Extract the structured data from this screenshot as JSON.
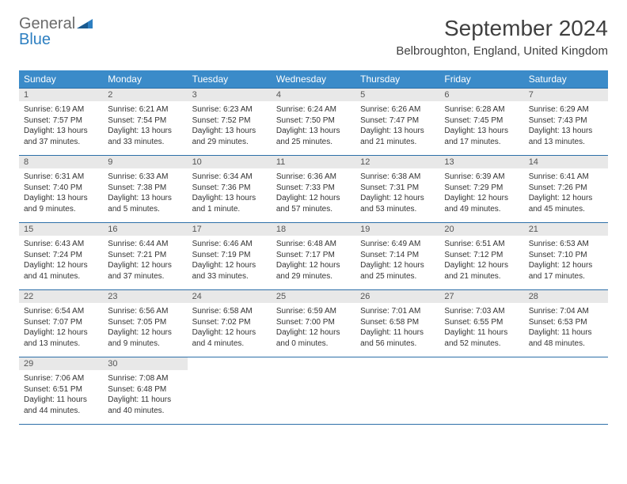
{
  "logo": {
    "text1": "General",
    "text2": "Blue"
  },
  "title": "September 2024",
  "location": "Belbroughton, England, United Kingdom",
  "colors": {
    "header_bg": "#3b8bc9",
    "header_text": "#ffffff",
    "daynum_bg": "#e8e8e8",
    "border": "#2d6fa8",
    "logo_gray": "#6b6b6b",
    "logo_blue": "#2d7fc1"
  },
  "weekdays": [
    "Sunday",
    "Monday",
    "Tuesday",
    "Wednesday",
    "Thursday",
    "Friday",
    "Saturday"
  ],
  "days": [
    {
      "n": "1",
      "sunrise": "Sunrise: 6:19 AM",
      "sunset": "Sunset: 7:57 PM",
      "daylight": "Daylight: 13 hours and 37 minutes."
    },
    {
      "n": "2",
      "sunrise": "Sunrise: 6:21 AM",
      "sunset": "Sunset: 7:54 PM",
      "daylight": "Daylight: 13 hours and 33 minutes."
    },
    {
      "n": "3",
      "sunrise": "Sunrise: 6:23 AM",
      "sunset": "Sunset: 7:52 PM",
      "daylight": "Daylight: 13 hours and 29 minutes."
    },
    {
      "n": "4",
      "sunrise": "Sunrise: 6:24 AM",
      "sunset": "Sunset: 7:50 PM",
      "daylight": "Daylight: 13 hours and 25 minutes."
    },
    {
      "n": "5",
      "sunrise": "Sunrise: 6:26 AM",
      "sunset": "Sunset: 7:47 PM",
      "daylight": "Daylight: 13 hours and 21 minutes."
    },
    {
      "n": "6",
      "sunrise": "Sunrise: 6:28 AM",
      "sunset": "Sunset: 7:45 PM",
      "daylight": "Daylight: 13 hours and 17 minutes."
    },
    {
      "n": "7",
      "sunrise": "Sunrise: 6:29 AM",
      "sunset": "Sunset: 7:43 PM",
      "daylight": "Daylight: 13 hours and 13 minutes."
    },
    {
      "n": "8",
      "sunrise": "Sunrise: 6:31 AM",
      "sunset": "Sunset: 7:40 PM",
      "daylight": "Daylight: 13 hours and 9 minutes."
    },
    {
      "n": "9",
      "sunrise": "Sunrise: 6:33 AM",
      "sunset": "Sunset: 7:38 PM",
      "daylight": "Daylight: 13 hours and 5 minutes."
    },
    {
      "n": "10",
      "sunrise": "Sunrise: 6:34 AM",
      "sunset": "Sunset: 7:36 PM",
      "daylight": "Daylight: 13 hours and 1 minute."
    },
    {
      "n": "11",
      "sunrise": "Sunrise: 6:36 AM",
      "sunset": "Sunset: 7:33 PM",
      "daylight": "Daylight: 12 hours and 57 minutes."
    },
    {
      "n": "12",
      "sunrise": "Sunrise: 6:38 AM",
      "sunset": "Sunset: 7:31 PM",
      "daylight": "Daylight: 12 hours and 53 minutes."
    },
    {
      "n": "13",
      "sunrise": "Sunrise: 6:39 AM",
      "sunset": "Sunset: 7:29 PM",
      "daylight": "Daylight: 12 hours and 49 minutes."
    },
    {
      "n": "14",
      "sunrise": "Sunrise: 6:41 AM",
      "sunset": "Sunset: 7:26 PM",
      "daylight": "Daylight: 12 hours and 45 minutes."
    },
    {
      "n": "15",
      "sunrise": "Sunrise: 6:43 AM",
      "sunset": "Sunset: 7:24 PM",
      "daylight": "Daylight: 12 hours and 41 minutes."
    },
    {
      "n": "16",
      "sunrise": "Sunrise: 6:44 AM",
      "sunset": "Sunset: 7:21 PM",
      "daylight": "Daylight: 12 hours and 37 minutes."
    },
    {
      "n": "17",
      "sunrise": "Sunrise: 6:46 AM",
      "sunset": "Sunset: 7:19 PM",
      "daylight": "Daylight: 12 hours and 33 minutes."
    },
    {
      "n": "18",
      "sunrise": "Sunrise: 6:48 AM",
      "sunset": "Sunset: 7:17 PM",
      "daylight": "Daylight: 12 hours and 29 minutes."
    },
    {
      "n": "19",
      "sunrise": "Sunrise: 6:49 AM",
      "sunset": "Sunset: 7:14 PM",
      "daylight": "Daylight: 12 hours and 25 minutes."
    },
    {
      "n": "20",
      "sunrise": "Sunrise: 6:51 AM",
      "sunset": "Sunset: 7:12 PM",
      "daylight": "Daylight: 12 hours and 21 minutes."
    },
    {
      "n": "21",
      "sunrise": "Sunrise: 6:53 AM",
      "sunset": "Sunset: 7:10 PM",
      "daylight": "Daylight: 12 hours and 17 minutes."
    },
    {
      "n": "22",
      "sunrise": "Sunrise: 6:54 AM",
      "sunset": "Sunset: 7:07 PM",
      "daylight": "Daylight: 12 hours and 13 minutes."
    },
    {
      "n": "23",
      "sunrise": "Sunrise: 6:56 AM",
      "sunset": "Sunset: 7:05 PM",
      "daylight": "Daylight: 12 hours and 9 minutes."
    },
    {
      "n": "24",
      "sunrise": "Sunrise: 6:58 AM",
      "sunset": "Sunset: 7:02 PM",
      "daylight": "Daylight: 12 hours and 4 minutes."
    },
    {
      "n": "25",
      "sunrise": "Sunrise: 6:59 AM",
      "sunset": "Sunset: 7:00 PM",
      "daylight": "Daylight: 12 hours and 0 minutes."
    },
    {
      "n": "26",
      "sunrise": "Sunrise: 7:01 AM",
      "sunset": "Sunset: 6:58 PM",
      "daylight": "Daylight: 11 hours and 56 minutes."
    },
    {
      "n": "27",
      "sunrise": "Sunrise: 7:03 AM",
      "sunset": "Sunset: 6:55 PM",
      "daylight": "Daylight: 11 hours and 52 minutes."
    },
    {
      "n": "28",
      "sunrise": "Sunrise: 7:04 AM",
      "sunset": "Sunset: 6:53 PM",
      "daylight": "Daylight: 11 hours and 48 minutes."
    },
    {
      "n": "29",
      "sunrise": "Sunrise: 7:06 AM",
      "sunset": "Sunset: 6:51 PM",
      "daylight": "Daylight: 11 hours and 44 minutes."
    },
    {
      "n": "30",
      "sunrise": "Sunrise: 7:08 AM",
      "sunset": "Sunset: 6:48 PM",
      "daylight": "Daylight: 11 hours and 40 minutes."
    }
  ]
}
